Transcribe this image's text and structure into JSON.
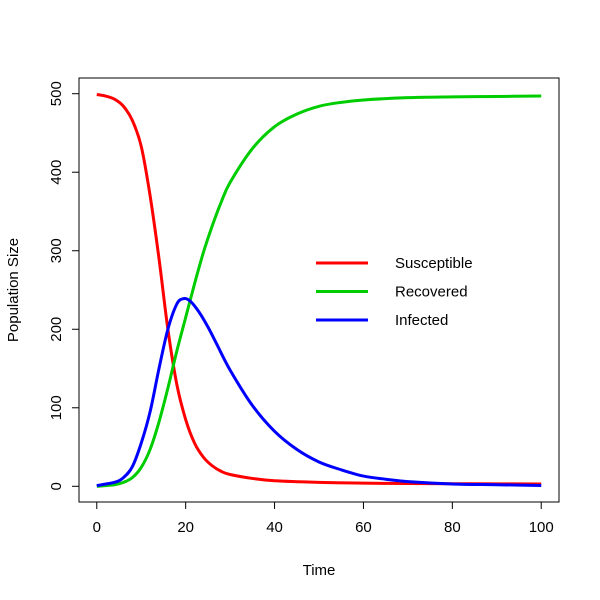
{
  "chart_data": {
    "type": "line",
    "title": "",
    "xlabel": "Time",
    "ylabel": "Population Size",
    "xlim": [
      -4,
      104
    ],
    "ylim": [
      -20,
      520
    ],
    "x_ticks": [
      0,
      20,
      40,
      60,
      80,
      100
    ],
    "y_ticks": [
      0,
      100,
      200,
      300,
      400,
      500
    ],
    "grid": false,
    "legend_position": "center-right",
    "series": [
      {
        "name": "Susceptible",
        "color": "#FF0000",
        "points": [
          [
            0,
            499
          ],
          [
            2,
            497
          ],
          [
            4,
            493
          ],
          [
            6,
            484
          ],
          [
            8,
            466
          ],
          [
            10,
            433
          ],
          [
            12,
            370
          ],
          [
            14,
            290
          ],
          [
            16,
            200
          ],
          [
            18,
            130
          ],
          [
            20,
            85
          ],
          [
            22,
            55
          ],
          [
            24,
            37
          ],
          [
            26,
            26
          ],
          [
            28,
            19
          ],
          [
            30,
            15
          ],
          [
            35,
            10
          ],
          [
            40,
            7
          ],
          [
            50,
            5
          ],
          [
            60,
            4
          ],
          [
            70,
            3.5
          ],
          [
            80,
            3.3
          ],
          [
            90,
            3.1
          ],
          [
            100,
            3
          ]
        ]
      },
      {
        "name": "Recovered",
        "color": "#00CD00",
        "points": [
          [
            0,
            0
          ],
          [
            4,
            2
          ],
          [
            6,
            5
          ],
          [
            8,
            11
          ],
          [
            10,
            24
          ],
          [
            12,
            47
          ],
          [
            14,
            82
          ],
          [
            16,
            125
          ],
          [
            18,
            172
          ],
          [
            20,
            215
          ],
          [
            22,
            258
          ],
          [
            24,
            298
          ],
          [
            26,
            332
          ],
          [
            28,
            362
          ],
          [
            30,
            387
          ],
          [
            35,
            430
          ],
          [
            40,
            458
          ],
          [
            45,
            474
          ],
          [
            50,
            484
          ],
          [
            55,
            489
          ],
          [
            60,
            492
          ],
          [
            70,
            495
          ],
          [
            80,
            496
          ],
          [
            90,
            496.5
          ],
          [
            100,
            497
          ]
        ]
      },
      {
        "name": "Infected",
        "color": "#0000FF",
        "points": [
          [
            0,
            1
          ],
          [
            4,
            5
          ],
          [
            6,
            11
          ],
          [
            8,
            25
          ],
          [
            10,
            55
          ],
          [
            12,
            95
          ],
          [
            14,
            150
          ],
          [
            16,
            200
          ],
          [
            18,
            232
          ],
          [
            19.5,
            239
          ],
          [
            21,
            236
          ],
          [
            23,
            222
          ],
          [
            25,
            203
          ],
          [
            27,
            181
          ],
          [
            30,
            148
          ],
          [
            35,
            103
          ],
          [
            40,
            70
          ],
          [
            45,
            47
          ],
          [
            50,
            31
          ],
          [
            55,
            21
          ],
          [
            60,
            13
          ],
          [
            65,
            9
          ],
          [
            70,
            6
          ],
          [
            80,
            3
          ],
          [
            90,
            2
          ],
          [
            100,
            1
          ]
        ]
      }
    ]
  }
}
